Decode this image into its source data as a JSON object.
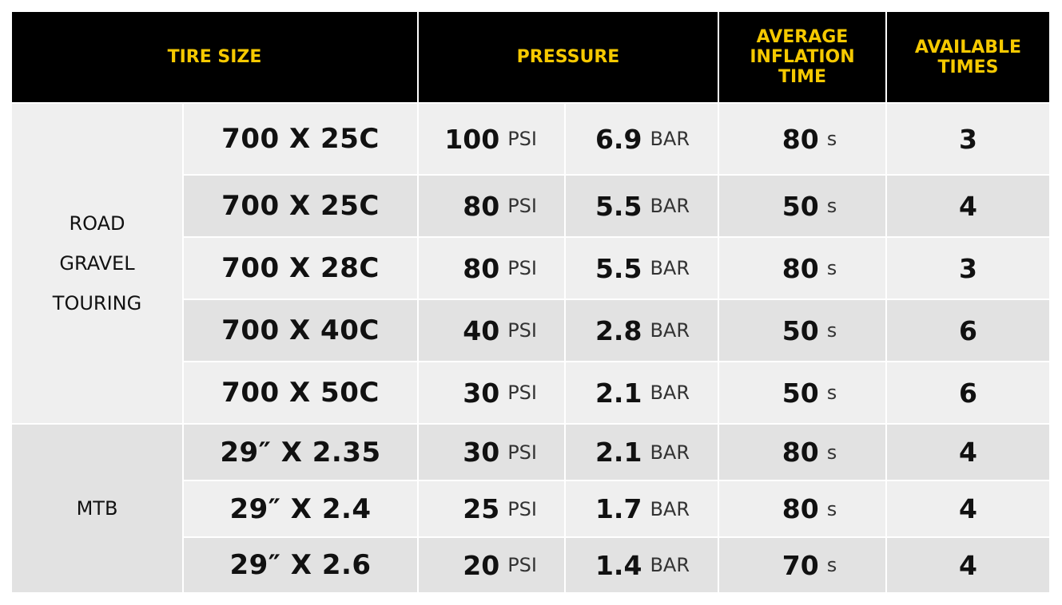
{
  "headers": {
    "tire_size": "TIRE SIZE",
    "pressure": "PRESSURE",
    "avg_inflation": [
      "AVERAGE",
      "INFLATION",
      "TIME"
    ],
    "available": [
      "AVAILABLE",
      "TIMES"
    ]
  },
  "categories": [
    {
      "lines": [
        "ROAD",
        "GRAVEL",
        "TOURING"
      ]
    },
    {
      "lines": [
        "MTB"
      ]
    }
  ],
  "rows": [
    {
      "size": "700 X 25C",
      "psi": "100",
      "psi_unit": "PSI",
      "bar": "6.9",
      "bar_unit": "BAR",
      "time": "80",
      "time_unit": "s",
      "times": "3"
    },
    {
      "size": "700 X 25C",
      "psi": "80",
      "psi_unit": "PSI",
      "bar": "5.5",
      "bar_unit": "BAR",
      "time": "50",
      "time_unit": "s",
      "times": "4"
    },
    {
      "size": "700 X 28C",
      "psi": "80",
      "psi_unit": "PSI",
      "bar": "5.5",
      "bar_unit": "BAR",
      "time": "80",
      "time_unit": "s",
      "times": "3"
    },
    {
      "size": "700 X 40C",
      "psi": "40",
      "psi_unit": "PSI",
      "bar": "2.8",
      "bar_unit": "BAR",
      "time": "50",
      "time_unit": "s",
      "times": "6"
    },
    {
      "size": "700 X 50C",
      "psi": "30",
      "psi_unit": "PSI",
      "bar": "2.1",
      "bar_unit": "BAR",
      "time": "50",
      "time_unit": "s",
      "times": "6"
    },
    {
      "size": "29″ X 2.35",
      "psi": "30",
      "psi_unit": "PSI",
      "bar": "2.1",
      "bar_unit": "BAR",
      "time": "80",
      "time_unit": "s",
      "times": "4"
    },
    {
      "size": "29″ X 2.4",
      "psi": "25",
      "psi_unit": "PSI",
      "bar": "1.7",
      "bar_unit": "BAR",
      "time": "80",
      "time_unit": "s",
      "times": "4"
    },
    {
      "size": "29″ X 2.6",
      "psi": "20",
      "psi_unit": "PSI",
      "bar": "1.4",
      "bar_unit": "BAR",
      "time": "70",
      "time_unit": "s",
      "times": "4"
    }
  ]
}
